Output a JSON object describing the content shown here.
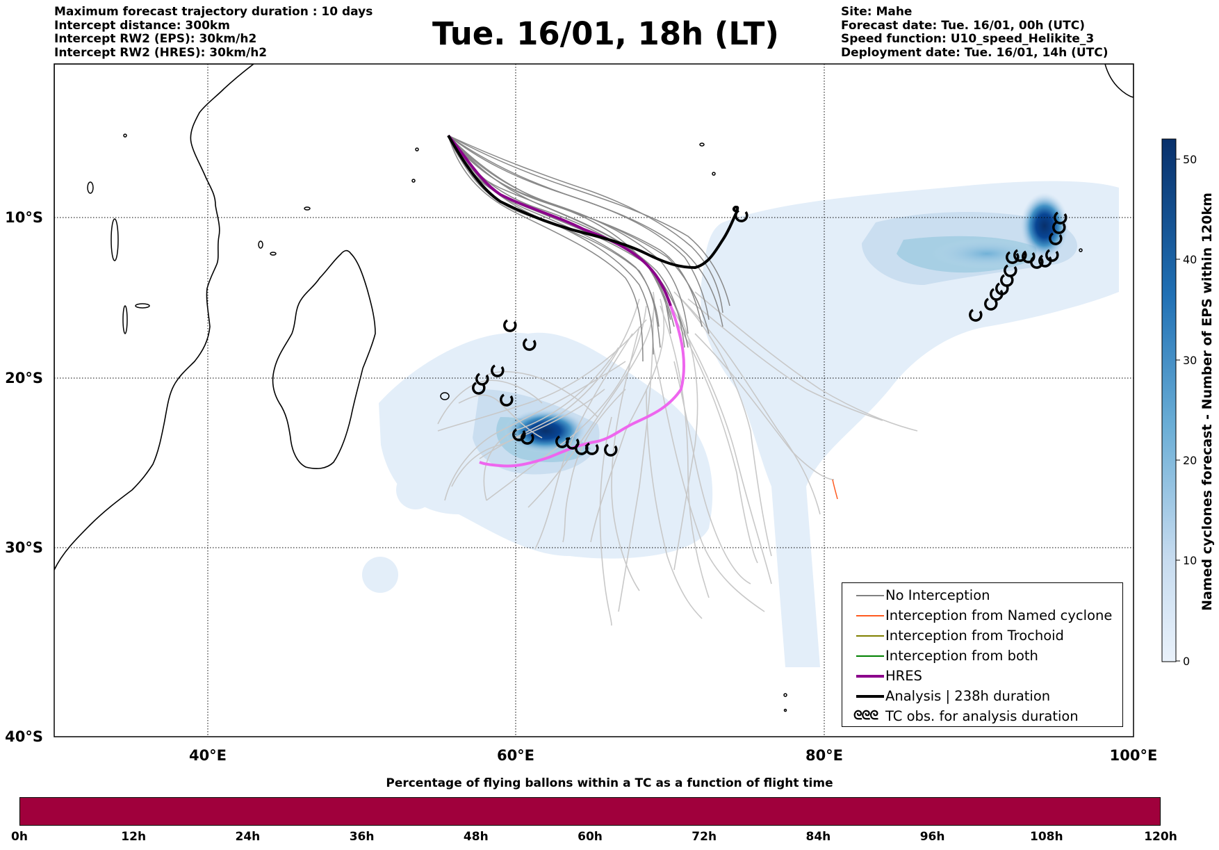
{
  "header": {
    "left_info": [
      "Maximum forecast trajectory duration : 10 days",
      "Intercept distance: 300km",
      "Intercept RW2 (EPS):  30km/h2",
      "Intercept RW2 (HRES): 30km/h2"
    ],
    "title": "Tue. 16/01, 18h (LT)",
    "right_info": [
      "Site: Mahe",
      "Forecast date: Tue. 16/01, 00h (UTC)",
      "Speed function: U10_speed_Helikite_3",
      "Deployment date: Tue. 16/01, 14h (UTC)"
    ]
  },
  "map": {
    "lon_range": [
      30,
      100
    ],
    "lat_range": [
      -40,
      -2
    ],
    "lon_ticks": [
      {
        "value": 40,
        "label": "40°E"
      },
      {
        "value": 60,
        "label": "60°E"
      },
      {
        "value": 80,
        "label": "80°E"
      },
      {
        "value": 100,
        "label": "100°E"
      }
    ],
    "lat_ticks": [
      {
        "value": -10,
        "label": "10°S"
      },
      {
        "value": -20,
        "label": "20°S"
      },
      {
        "value": -30,
        "label": "30°S"
      },
      {
        "value": -40,
        "label": "40°S"
      }
    ],
    "grid": "dotted"
  },
  "colorbar": {
    "title": "Named cyclones forecast - Number of EPS within 120km",
    "range": [
      0,
      52
    ],
    "ticks": [
      "0",
      "10",
      "20",
      "30",
      "40",
      "50"
    ],
    "color_low": "#eaf2fb",
    "color_high": "#08306b"
  },
  "legend": {
    "items": [
      {
        "label": "No Interception",
        "color": "#808080"
      },
      {
        "label": "Interception from Named cyclone",
        "color": "#ff5a1f"
      },
      {
        "label": "Interception from Trochoid",
        "color": "#808000"
      },
      {
        "label": "Interception from both",
        "color": "#008000"
      },
      {
        "label": "HRES",
        "color": "#8b008b"
      },
      {
        "label": "Analysis | 238h duration",
        "color": "#000000"
      },
      {
        "label": "TC obs. for analysis duration",
        "color": "#000000",
        "symbol": "ᘓᘓᘓ"
      }
    ]
  },
  "flight_bar": {
    "title": "Percentage of flying ballons within a TC as a function of flight time",
    "color": "#a0003c",
    "ticks": [
      "0h",
      "12h",
      "24h",
      "36h",
      "48h",
      "60h",
      "72h",
      "84h",
      "96h",
      "108h",
      "120h"
    ]
  },
  "chart_data": {
    "type": "map",
    "site": "Mahe",
    "start_point": {
      "lon": 55.5,
      "lat": -4.7
    },
    "hres_track": [
      [
        55.5,
        -4.7
      ],
      [
        57.5,
        -6.8
      ],
      [
        60,
        -8.8
      ],
      [
        63,
        -9.8
      ],
      [
        66,
        -10.8
      ],
      [
        68.5,
        -12.3
      ],
      [
        70,
        -14.5
      ],
      [
        70.8,
        -17.5
      ],
      [
        71,
        -20
      ],
      [
        70,
        -21.8
      ],
      [
        67.5,
        -22.8
      ],
      [
        65,
        -24
      ],
      [
        62.5,
        -24.5
      ],
      [
        59.5,
        -24.7
      ]
    ],
    "analysis_track": [
      [
        55.5,
        -4.7
      ],
      [
        57,
        -6.8
      ],
      [
        59,
        -8.8
      ],
      [
        61.5,
        -10
      ],
      [
        64,
        -10.8
      ],
      [
        67,
        -11.5
      ],
      [
        69.5,
        -12.3
      ],
      [
        71.5,
        -12.7
      ],
      [
        72.8,
        -12
      ],
      [
        74,
        -10.5
      ],
      [
        74.5,
        -9.5
      ],
      [
        74.2,
        -9.3
      ]
    ],
    "tc_obs": [
      [
        59.5,
        -15.9
      ],
      [
        60.8,
        -17.4
      ],
      [
        57.6,
        -19.7
      ],
      [
        57.6,
        -20.1
      ],
      [
        58.6,
        -19.3
      ],
      [
        59.2,
        -20.8
      ],
      [
        60,
        -22.7
      ],
      [
        61,
        -23
      ],
      [
        63,
        -23.3
      ],
      [
        63.7,
        -23.3
      ],
      [
        64.3,
        -23.8
      ],
      [
        65,
        -23.8
      ],
      [
        66.2,
        -23.8
      ],
      [
        89.6,
        -15.5
      ],
      [
        90.8,
        -14.6
      ],
      [
        91.2,
        -14
      ],
      [
        91.6,
        -13.7
      ],
      [
        92,
        -13.2
      ],
      [
        92.3,
        -12.6
      ],
      [
        92.7,
        -12.2
      ],
      [
        93.2,
        -12.4
      ],
      [
        93.6,
        -12.5
      ],
      [
        94.1,
        -12.5
      ],
      [
        94.6,
        -12
      ],
      [
        95.1,
        -10.5
      ],
      [
        95.4,
        -10.2
      ],
      [
        95.6,
        -9.8
      ],
      [
        95.8,
        -10
      ]
    ],
    "density_hotspots": [
      {
        "lon": 61.5,
        "lat": -23.5,
        "value": 52
      },
      {
        "lon": 95,
        "lat": -10.3,
        "value": 50
      }
    ]
  }
}
